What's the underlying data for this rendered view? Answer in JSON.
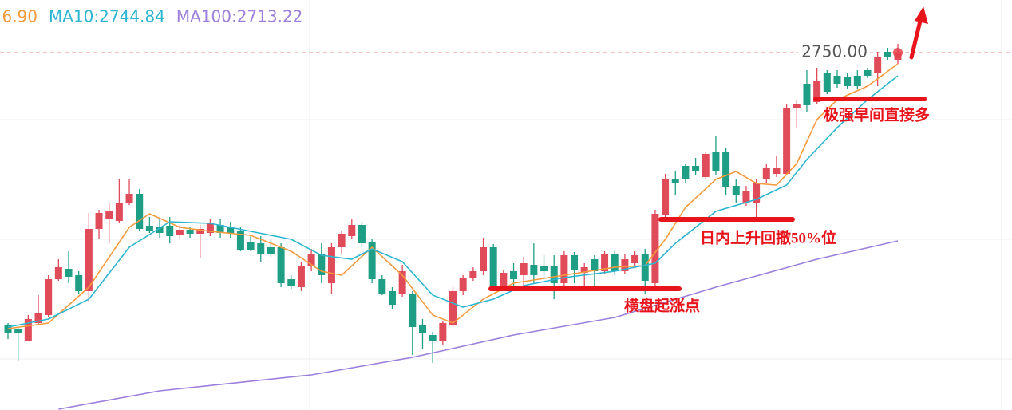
{
  "chart_data": {
    "type": "candlestick",
    "ylim": [
      2660.4,
      2763.2
    ],
    "up_color": "#e04b5a",
    "down_color": "#1f9e86",
    "open": [
      2681.8,
      2680.8,
      2677.8,
      2682.2,
      2684.2,
      2693.2,
      2695.8,
      2694.2,
      2690.2,
      2705.8,
      2708.2,
      2707.8,
      2712.2,
      2714.6,
      2706.6,
      2706.2,
      2706.6,
      2704.2,
      2705.6,
      2704.6,
      2704.8,
      2706.8,
      2706.2,
      2705.2,
      2702.6,
      2702.2,
      2701.2,
      2701.2,
      2693.2,
      2691.2,
      2696.6,
      2699.6,
      2692.2,
      2701.2,
      2704.0,
      2706.8,
      2702.6,
      2693.2,
      2690.2,
      2689.6,
      2689.6,
      2681.6,
      2679.2,
      2677.6,
      2681.8,
      2690.2,
      2693.6,
      2695.2,
      2701.2,
      2691.2,
      2695.2,
      2694.2,
      2696.8,
      2696.6,
      2696.6,
      2692.2,
      2699.2,
      2694.8,
      2698.2,
      2695.2,
      2699.6,
      2695.2,
      2697.2,
      2699.6,
      2692.2,
      2709.2,
      2718.2,
      2721.6,
      2721.6,
      2718.8,
      2725.2,
      2725.2,
      2716.6,
      2712.2,
      2712.2,
      2718.2,
      2719.6,
      2719.6,
      2736.2,
      2742.2,
      2737.6,
      2744.8,
      2744.2,
      2743.8,
      2744.2,
      2745.6,
      2744.8,
      2750.2,
      2748.2
    ],
    "high": [
      2682.2,
      2681.2,
      2684.2,
      2689.2,
      2694.2,
      2698.2,
      2700.2,
      2695.2,
      2709.8,
      2710.6,
      2712.2,
      2718.2,
      2718.2,
      2715.8,
      2708.8,
      2708.2,
      2708.8,
      2706.8,
      2706.2,
      2706.8,
      2708.2,
      2708.2,
      2707.6,
      2706.2,
      2704.0,
      2704.0,
      2703.2,
      2702.2,
      2694.2,
      2697.6,
      2700.8,
      2702.2,
      2702.2,
      2705.2,
      2708.2,
      2707.6,
      2703.2,
      2694.2,
      2691.2,
      2696.8,
      2690.2,
      2683.2,
      2680.0,
      2682.8,
      2691.2,
      2694.2,
      2696.2,
      2703.6,
      2702.0,
      2695.6,
      2697.2,
      2698.8,
      2702.2,
      2699.2,
      2699.2,
      2700.2,
      2700.0,
      2697.2,
      2699.2,
      2700.2,
      2700.2,
      2699.6,
      2700.2,
      2700.8,
      2710.6,
      2719.6,
      2720.2,
      2722.2,
      2723.6,
      2725.2,
      2729.2,
      2726.2,
      2718.2,
      2716.6,
      2718.2,
      2722.2,
      2724.2,
      2737.2,
      2738.2,
      2745.6,
      2746.2,
      2745.6,
      2745.6,
      2744.8,
      2745.6,
      2746.2,
      2750.2,
      2751.2,
      2752.2
    ],
    "low": [
      2678.2,
      2672.8,
      2677.6,
      2681.8,
      2683.6,
      2692.8,
      2692.2,
      2689.6,
      2687.6,
      2703.2,
      2702.2,
      2707.2,
      2711.8,
      2705.2,
      2704.8,
      2703.6,
      2702.2,
      2703.2,
      2703.6,
      2698.6,
      2704.0,
      2703.6,
      2703.6,
      2700.2,
      2700.2,
      2697.6,
      2698.8,
      2691.2,
      2690.8,
      2690.2,
      2695.2,
      2692.2,
      2689.6,
      2699.6,
      2703.2,
      2701.2,
      2692.2,
      2689.2,
      2685.6,
      2688.8,
      2674.2,
      2675.6,
      2672.2,
      2676.8,
      2681.2,
      2689.2,
      2692.8,
      2694.2,
      2690.2,
      2690.2,
      2691.6,
      2691.2,
      2692.2,
      2693.2,
      2688.2,
      2691.2,
      2692.2,
      2691.2,
      2691.2,
      2694.6,
      2694.2,
      2694.6,
      2696.2,
      2689.6,
      2691.6,
      2708.2,
      2714.2,
      2717.2,
      2719.2,
      2718.2,
      2719.2,
      2714.2,
      2712.2,
      2711.6,
      2708.8,
      2717.2,
      2718.8,
      2719.2,
      2731.2,
      2735.2,
      2737.2,
      2739.6,
      2741.2,
      2740.8,
      2740.8,
      2743.6,
      2741.6,
      2748.2,
      2747.2
    ],
    "close": [
      2679.8,
      2679.6,
      2683.2,
      2684.6,
      2693.2,
      2696.2,
      2693.8,
      2690.2,
      2705.8,
      2709.8,
      2710.2,
      2712.2,
      2714.6,
      2705.8,
      2705.2,
      2704.8,
      2704.0,
      2705.6,
      2704.6,
      2705.8,
      2707.2,
      2704.8,
      2704.8,
      2700.6,
      2700.6,
      2699.6,
      2699.6,
      2692.2,
      2691.6,
      2696.6,
      2699.6,
      2694.2,
      2701.2,
      2704.6,
      2706.8,
      2702.2,
      2693.2,
      2689.6,
      2686.8,
      2695.2,
      2681.2,
      2679.6,
      2677.6,
      2682.2,
      2690.2,
      2693.6,
      2695.2,
      2701.2,
      2691.2,
      2694.8,
      2693.2,
      2697.2,
      2694.2,
      2695.2,
      2692.2,
      2699.2,
      2695.6,
      2696.2,
      2695.2,
      2699.6,
      2695.2,
      2698.2,
      2699.2,
      2692.8,
      2709.6,
      2718.2,
      2717.2,
      2718.2,
      2720.2,
      2724.6,
      2720.2,
      2716.2,
      2714.2,
      2715.2,
      2717.2,
      2721.2,
      2721.2,
      2736.2,
      2737.2,
      2736.8,
      2742.8,
      2740.2,
      2742.2,
      2741.6,
      2741.6,
      2744.2,
      2748.8,
      2748.8,
      2750.0
    ],
    "series": [
      {
        "name": "6.90",
        "color": "#f59a3c",
        "x": [
          0,
          4,
          8,
          12,
          14,
          17,
          20,
          24,
          28,
          31,
          33,
          36,
          39,
          42,
          44,
          47,
          50,
          55,
          60,
          63,
          65,
          67,
          70,
          72,
          74,
          76,
          78,
          80,
          82,
          85,
          88
        ],
        "values": [
          2680.8,
          2682.2,
          2691.2,
          2706.2,
          2709.6,
          2706.2,
          2705.2,
          2704.2,
          2700.2,
          2695.2,
          2694.2,
          2701.2,
          2694.2,
          2684.2,
          2682.2,
          2688.2,
          2692.2,
          2694.2,
          2696.2,
          2696.6,
          2703.2,
          2711.2,
          2718.2,
          2720.2,
          2717.2,
          2716.8,
          2722.2,
          2733.2,
          2738.2,
          2741.6,
          2747.2
        ]
      },
      {
        "name": "MA10:2744.84",
        "color": "#2bb5d0",
        "x": [
          0,
          4,
          8,
          12,
          16,
          20,
          24,
          28,
          31,
          34,
          36,
          39,
          42,
          45,
          48,
          51,
          55,
          60,
          64,
          66,
          70,
          74,
          77,
          79,
          82,
          85,
          88
        ],
        "values": [
          2681.2,
          2683.2,
          2688.2,
          2701.2,
          2707.6,
          2707.2,
          2705.2,
          2703.2,
          2699.2,
          2698.2,
          2700.8,
          2697.6,
          2689.2,
          2686.2,
          2688.2,
          2691.6,
          2693.6,
          2695.2,
          2697.2,
          2702.2,
          2710.2,
          2713.2,
          2716.8,
          2723.2,
          2731.2,
          2738.2,
          2744.2
        ]
      },
      {
        "name": "MA100:2713.22",
        "color": "#9b7fdb",
        "x": [
          5,
          15,
          30,
          40,
          50,
          60,
          70,
          80,
          88
        ],
        "values": [
          2660.6,
          2665.2,
          2669.2,
          2673.6,
          2679.2,
          2683.6,
          2691.2,
          2698.2,
          2702.8
        ]
      }
    ],
    "last_price": {
      "value": 2750,
      "label": "2750.00"
    },
    "annotations": [
      "极强早间直接多",
      "日内上升回撤50%位",
      "横盘起涨点"
    ]
  }
}
